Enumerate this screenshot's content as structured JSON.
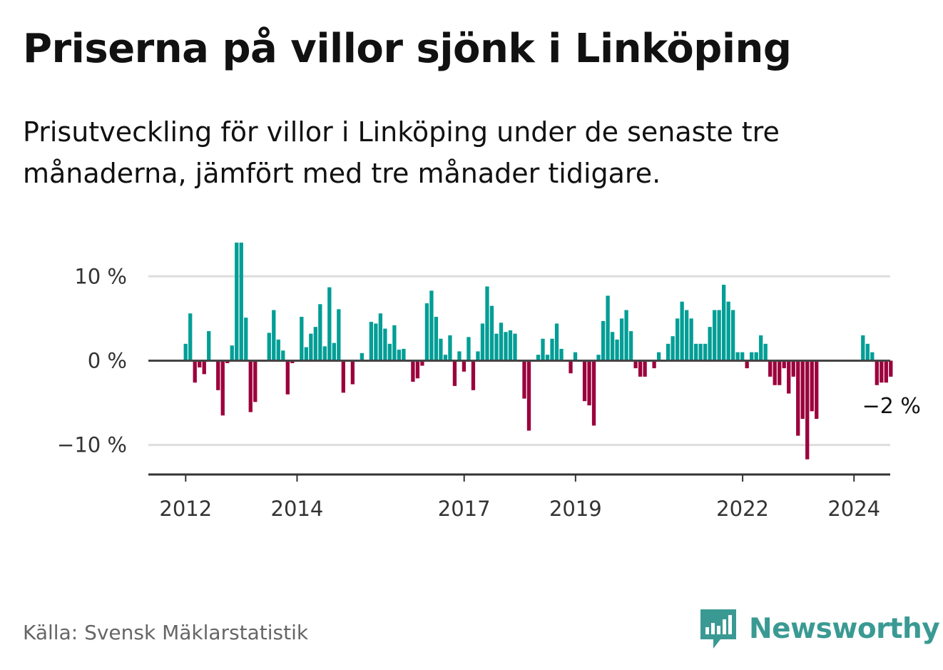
{
  "title": "Priserna på villor sjönk i Linköping",
  "subtitle": "Prisutveckling för villor i Linköping under de senaste tre månaderna, jämfört med tre månader tidigare.",
  "source": "Källa: Svensk Mäklarstatistik",
  "brand": {
    "name": "Newsworthy",
    "icon": "bar-chart-speech-bubble-icon",
    "color": "#3a9a93"
  },
  "chart_data": {
    "type": "bar",
    "title": "",
    "xlabel": "",
    "ylabel": "",
    "unit": "%",
    "ylim": [
      -13.5,
      14
    ],
    "grid": true,
    "colors": {
      "positive": "#009e96",
      "negative": "#9b003c",
      "grid": "#dddddd",
      "zero": "#444444"
    },
    "y_ticks": [
      {
        "value": 10,
        "label": "10 %"
      },
      {
        "value": 0,
        "label": "0 %"
      },
      {
        "value": -10,
        "label": "−10 %"
      }
    ],
    "x_ticks": [
      {
        "value": 2012.0,
        "label": "2012"
      },
      {
        "value": 2014.0,
        "label": "2014"
      },
      {
        "value": 2017.0,
        "label": "2017"
      },
      {
        "value": 2019.0,
        "label": "2019"
      },
      {
        "value": 2022.0,
        "label": "2022"
      },
      {
        "value": 2024.0,
        "label": "2024"
      }
    ],
    "x_range": [
      2011.33,
      2024.65
    ],
    "x_start": 2012.0,
    "step": 0.0833,
    "values": [
      2,
      5.6,
      -2.6,
      -0.8,
      -1.6,
      3.5,
      0,
      -3.5,
      -6.5,
      -0.3,
      1.8,
      14,
      14,
      5.1,
      -6.1,
      -4.9,
      0,
      0,
      3.3,
      6.0,
      2.5,
      1.2,
      -4.0,
      -0.3,
      0,
      5.2,
      1.6,
      3.2,
      4.0,
      6.7,
      1.7,
      8.7,
      2.1,
      6.1,
      -3.8,
      0,
      -2.8,
      0,
      0.9,
      0,
      4.6,
      4.4,
      5.6,
      3.8,
      2.0,
      4.2,
      1.3,
      1.4,
      0,
      -2.5,
      -2.1,
      -0.6,
      6.8,
      8.3,
      5.2,
      2.6,
      0.7,
      3.0,
      -3.0,
      1.1,
      -1.3,
      2.8,
      -3.5,
      1.1,
      4.4,
      8.8,
      6.5,
      3.2,
      4.5,
      3.4,
      3.6,
      3.2,
      0,
      -4.5,
      -8.3,
      0,
      0.7,
      2.6,
      0.7,
      2.6,
      4.4,
      1.4,
      0,
      -1.5,
      1.0,
      0,
      -4.8,
      -5.3,
      -7.7,
      0.7,
      4.7,
      7.7,
      3.4,
      2.5,
      5.0,
      6.0,
      3.5,
      -0.9,
      -1.9,
      -1.9,
      0,
      -0.9,
      1.0,
      0,
      2.0,
      2.9,
      5.0,
      7.0,
      6.0,
      5.0,
      2.0,
      2.0,
      2.0,
      4.0,
      6.0,
      6.0,
      9.0,
      7.0,
      6.0,
      1.0,
      1.0,
      -0.9,
      1.0,
      1.0,
      3.0,
      2.0,
      -1.9,
      -2.9,
      -2.9,
      -0.9,
      -3.9,
      -1.9,
      -8.9,
      -6.9,
      -11.7,
      -6.0,
      -6.9,
      0,
      0,
      0,
      0,
      0,
      0,
      0,
      0,
      0,
      3.0,
      2.0,
      1.0,
      -2.9,
      -2.6,
      -2.6,
      -1.9
    ],
    "annotation": {
      "label": "−2 %",
      "value": -2
    }
  }
}
